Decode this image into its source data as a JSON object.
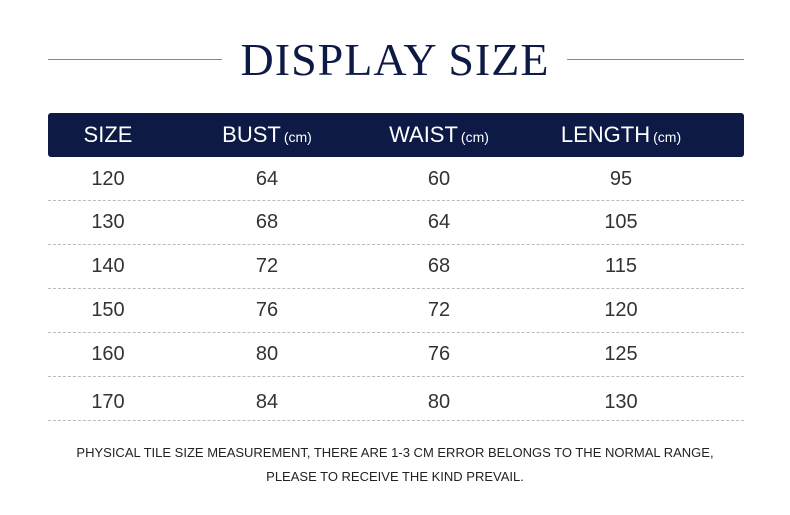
{
  "title": "DISPLAY SIZE",
  "colors": {
    "header_bg": "#0c1a45",
    "title": "#0c1a45"
  },
  "columns": [
    {
      "label": "SIZE",
      "unit": ""
    },
    {
      "label": "BUST",
      "unit": "(cm)"
    },
    {
      "label": "WAIST",
      "unit": "(cm)"
    },
    {
      "label": "LENGTH",
      "unit": "(cm)"
    }
  ],
  "rows": [
    [
      "120",
      "64",
      "60",
      "95"
    ],
    [
      "130",
      "68",
      "64",
      "105"
    ],
    [
      "140",
      "72",
      "68",
      "115"
    ],
    [
      "150",
      "76",
      "72",
      "120"
    ],
    [
      "160",
      "80",
      "76",
      "125"
    ],
    [
      "170",
      "84",
      "80",
      "130"
    ]
  ],
  "note": {
    "line1": "PHYSICAL TILE SIZE MEASUREMENT, THERE ARE 1-3 CM ERROR BELONGS TO THE NORMAL RANGE,",
    "line2": "PLEASE TO RECEIVE THE KIND PREVAIL."
  }
}
